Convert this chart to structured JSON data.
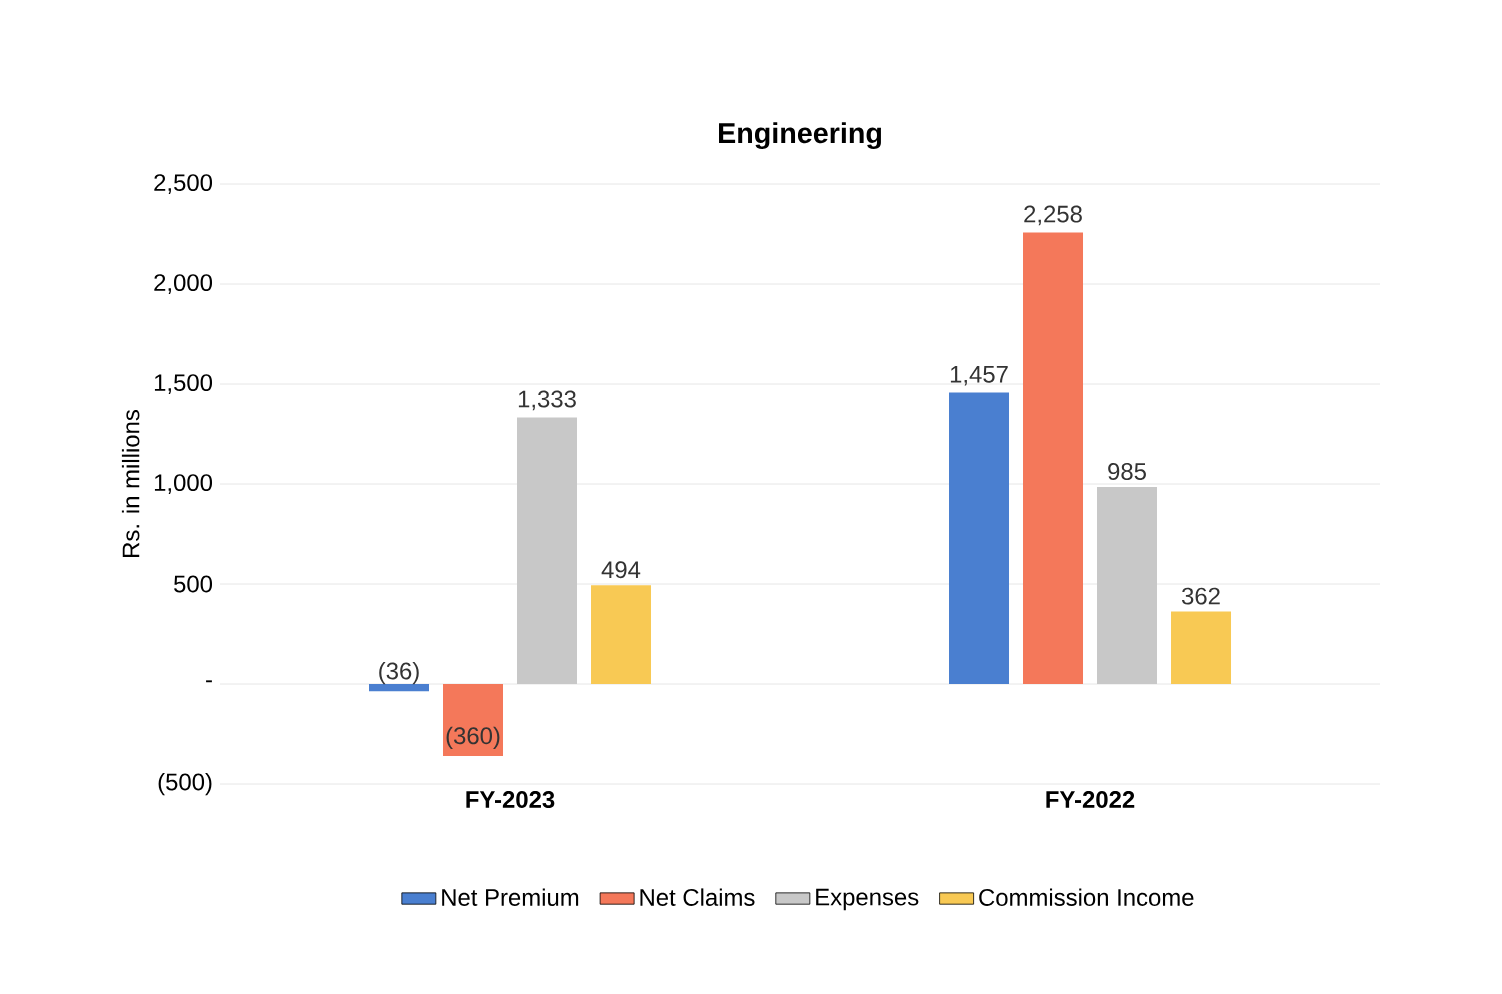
{
  "chart_data": {
    "type": "bar",
    "title": "Engineering",
    "ylabel": "Rs. in millions",
    "categories": [
      "FY-2023",
      "FY-2022"
    ],
    "series": [
      {
        "name": "Net Premium",
        "color": "#4a7fd0",
        "values": [
          -36,
          1457
        ],
        "value_labels": [
          "(36)",
          "1,457"
        ]
      },
      {
        "name": "Net Claims",
        "color": "#f4785a",
        "values": [
          -360,
          2258
        ],
        "value_labels": [
          "(360)",
          "2,258"
        ]
      },
      {
        "name": "Expenses",
        "color": "#c8c8c8",
        "values": [
          1333,
          985
        ],
        "value_labels": [
          "1,333",
          "985"
        ]
      },
      {
        "name": "Commission Income",
        "color": "#f8c954",
        "values": [
          494,
          362
        ],
        "value_labels": [
          "494",
          "362"
        ]
      }
    ],
    "ylim": [
      -500,
      2500
    ],
    "yticks": [
      {
        "value": -500,
        "label": "(500)"
      },
      {
        "value": 0,
        "label": "-"
      },
      {
        "value": 500,
        "label": "500"
      },
      {
        "value": 1000,
        "label": "1,000"
      },
      {
        "value": 1500,
        "label": "1,500"
      },
      {
        "value": 2000,
        "label": "2,000"
      },
      {
        "value": 2500,
        "label": "2,500"
      }
    ],
    "grid": "y",
    "legend": "bottom"
  }
}
